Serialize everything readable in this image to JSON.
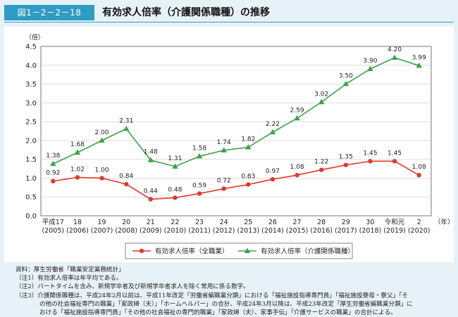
{
  "figure": {
    "label": "図1－2－2－18",
    "title": "有効求人倍率（介護関係職種）の推移"
  },
  "chart_data": {
    "type": "line",
    "ylabel": "（倍）",
    "xunit": "（年）",
    "ylim": [
      0.0,
      4.5
    ],
    "yticks": [
      "0.0",
      "0.5",
      "1.0",
      "1.5",
      "2.0",
      "2.5",
      "3.0",
      "3.5",
      "4.0",
      "4.5"
    ],
    "categories": [
      {
        "era": "平成17",
        "year": "(2005)"
      },
      {
        "era": "18",
        "year": "(2006)"
      },
      {
        "era": "19",
        "year": "(2007)"
      },
      {
        "era": "20",
        "year": "(2008)"
      },
      {
        "era": "21",
        "year": "(2009)"
      },
      {
        "era": "22",
        "year": "(2010)"
      },
      {
        "era": "23",
        "year": "(2011)"
      },
      {
        "era": "24",
        "year": "(2012)"
      },
      {
        "era": "25",
        "year": "(2013)"
      },
      {
        "era": "26",
        "year": "(2014)"
      },
      {
        "era": "27",
        "year": "(2015)"
      },
      {
        "era": "28",
        "year": "(2016)"
      },
      {
        "era": "29",
        "year": "(2017)"
      },
      {
        "era": "30",
        "year": "(2018)"
      },
      {
        "era": "令和元",
        "year": "(2019)"
      },
      {
        "era": "2",
        "year": "(2020)"
      }
    ],
    "series": [
      {
        "name": "有効求人倍率（全職業）",
        "color": "#e0392b",
        "marker": "circle",
        "values": [
          0.92,
          1.02,
          1.0,
          0.84,
          0.44,
          0.48,
          0.59,
          0.72,
          0.83,
          0.97,
          1.08,
          1.22,
          1.35,
          1.45,
          1.45,
          1.08
        ],
        "labels": [
          "0.92",
          "1.02",
          "1.00",
          "0.84",
          "0.44",
          "0.48",
          "0.59",
          "0.72",
          "0.83",
          "0.97",
          "1.08",
          "1.22",
          "1.35",
          "1.45",
          "1.45",
          "1.08"
        ]
      },
      {
        "name": "有効求人倍率（介護関係職種）",
        "color": "#3aa348",
        "marker": "triangle",
        "values": [
          1.38,
          1.68,
          2.0,
          2.31,
          1.48,
          1.31,
          1.58,
          1.74,
          1.82,
          2.22,
          2.59,
          3.02,
          3.5,
          3.9,
          4.2,
          3.99
        ],
        "labels": [
          "1.38",
          "1.68",
          "2.00",
          "2.31",
          "1.48",
          "1.31",
          "1.58",
          "1.74",
          "1.82",
          "2.22",
          "2.59",
          "3.02",
          "3.50",
          "3.90",
          "4.20",
          "3.99"
        ]
      }
    ],
    "grid": true,
    "legend_position": "bottom-center"
  },
  "notes": {
    "source": "資料：厚生労働省「職業安定業務統計」",
    "note1": "（注1）有効求人倍率は年平均である。",
    "note2": "（注2）パートタイムを含み、新規学卒者及び新規学卒者求人を除く常用に係る数字。",
    "note3_line1": "（注3）介護関係職種は、平成24年2月以前は、平成11年改定「労働省編職業分類」における「福祉施設指導専門員」「福祉施設寮母・寮父」「そ",
    "note3_line2": "の他の社会福祉専門の職業」「家政婦（夫）」「ホームヘルパー」の合計、平成24年3月以降は、平成23年改定「厚生労働省編職業分類」に",
    "note3_line3": "おける「福祉施設指導専門員」「その他の社会福祉の専門的職業」「家政婦（夫）、家事手伝」「介護サービスの職業」の合計による。"
  }
}
